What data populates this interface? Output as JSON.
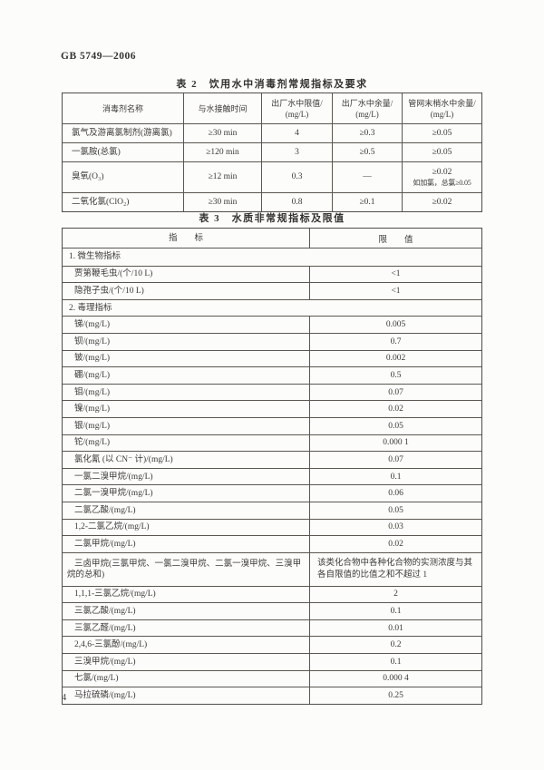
{
  "colors": {
    "ink": "#3b3a38",
    "border": "#5a5750",
    "paper": "#fcfcfb"
  },
  "header": {
    "doc_code": "GB 5749—2006"
  },
  "footer": {
    "page_number": "4"
  },
  "table2": {
    "title": "表 2　饮用水中消毒剂常规指标及要求",
    "col_headers": [
      {
        "line1": "消毒剂名称",
        "line2": ""
      },
      {
        "line1": "与水接触时间",
        "line2": ""
      },
      {
        "line1": "出厂水中限值/",
        "line2": "(mg/L)"
      },
      {
        "line1": "出厂水中余量/",
        "line2": "(mg/L)"
      },
      {
        "line1": "管网末梢水中余量/",
        "line2": "(mg/L)"
      }
    ],
    "rows": [
      {
        "row_class": "",
        "name": "氯气及游离氯制剂(游离氯)",
        "contact": "≥30 min",
        "limit": "4",
        "factory": "≥0.3",
        "pipe1": "≥0.05",
        "pipe2": ""
      },
      {
        "row_class": "",
        "name": "一氯胺(总氯)",
        "contact": "≥120 min",
        "limit": "3",
        "factory": "≥0.5",
        "pipe1": "≥0.05",
        "pipe2": ""
      },
      {
        "row_class": "tall",
        "name": "臭氧(O₃)",
        "contact": "≥12 min",
        "limit": "0.3",
        "factory": "—",
        "pipe1": "≥0.02",
        "pipe2": "如加氯，总氯≥0.05"
      },
      {
        "row_class": "",
        "name": "二氧化氯(ClO₂)",
        "contact": "≥30 min",
        "limit": "0.8",
        "factory": "≥0.1",
        "pipe1": "≥0.02",
        "pipe2": ""
      }
    ]
  },
  "table3": {
    "title": "表 3　水质非常规指标及限值",
    "col_headers": [
      "指　　标",
      "限　　值"
    ],
    "rows": [
      {
        "row_class": "section",
        "indicator": "1. 微生物指标",
        "limit": ""
      },
      {
        "row_class": "item",
        "indicator": "贾第鞭毛虫/(个/10 L)",
        "limit": "<1"
      },
      {
        "row_class": "item",
        "indicator": "隐孢子虫/(个/10 L)",
        "limit": "<1"
      },
      {
        "row_class": "section",
        "indicator": "2. 毒理指标",
        "limit": ""
      },
      {
        "row_class": "item",
        "indicator": "锑/(mg/L)",
        "limit": "0.005"
      },
      {
        "row_class": "item",
        "indicator": "钡/(mg/L)",
        "limit": "0.7"
      },
      {
        "row_class": "item",
        "indicator": "铍/(mg/L)",
        "limit": "0.002"
      },
      {
        "row_class": "item",
        "indicator": "硼/(mg/L)",
        "limit": "0.5"
      },
      {
        "row_class": "item",
        "indicator": "钼/(mg/L)",
        "limit": "0.07"
      },
      {
        "row_class": "item",
        "indicator": "镍/(mg/L)",
        "limit": "0.02"
      },
      {
        "row_class": "item",
        "indicator": "银/(mg/L)",
        "limit": "0.05"
      },
      {
        "row_class": "item",
        "indicator": "铊/(mg/L)",
        "limit": "0.000 1"
      },
      {
        "row_class": "item",
        "indicator": "氯化氰 (以 CN⁻ 计)/(mg/L)",
        "limit": "0.07"
      },
      {
        "row_class": "item",
        "indicator": "一氯二溴甲烷/(mg/L)",
        "limit": "0.1"
      },
      {
        "row_class": "item",
        "indicator": "二氯一溴甲烷/(mg/L)",
        "limit": "0.06"
      },
      {
        "row_class": "item",
        "indicator": "二氯乙酸/(mg/L)",
        "limit": "0.05"
      },
      {
        "row_class": "item",
        "indicator": "1,2-二氯乙烷/(mg/L)",
        "limit": "0.03"
      },
      {
        "row_class": "item",
        "indicator": "二氯甲烷/(mg/L)",
        "limit": "0.02"
      },
      {
        "row_class": "item2",
        "indicator": "三卤甲烷(三氯甲烷、一氯二溴甲烷、二氯一溴甲烷、三溴甲烷的总和)",
        "limit": "该类化合物中各种化合物的实测浓度与其各自限值的比值之和不超过 1"
      },
      {
        "row_class": "item",
        "indicator": "1,1,1-三氯乙烷/(mg/L)",
        "limit": "2"
      },
      {
        "row_class": "item",
        "indicator": "三氯乙酸/(mg/L)",
        "limit": "0.1"
      },
      {
        "row_class": "item",
        "indicator": "三氯乙醛/(mg/L)",
        "limit": "0.01"
      },
      {
        "row_class": "item",
        "indicator": "2,4,6-三氯酚/(mg/L)",
        "limit": "0.2"
      },
      {
        "row_class": "item",
        "indicator": "三溴甲烷/(mg/L)",
        "limit": "0.1"
      },
      {
        "row_class": "item",
        "indicator": "七氯/(mg/L)",
        "limit": "0.000 4"
      },
      {
        "row_class": "item",
        "indicator": "马拉硫磷/(mg/L)",
        "limit": "0.25"
      }
    ]
  }
}
